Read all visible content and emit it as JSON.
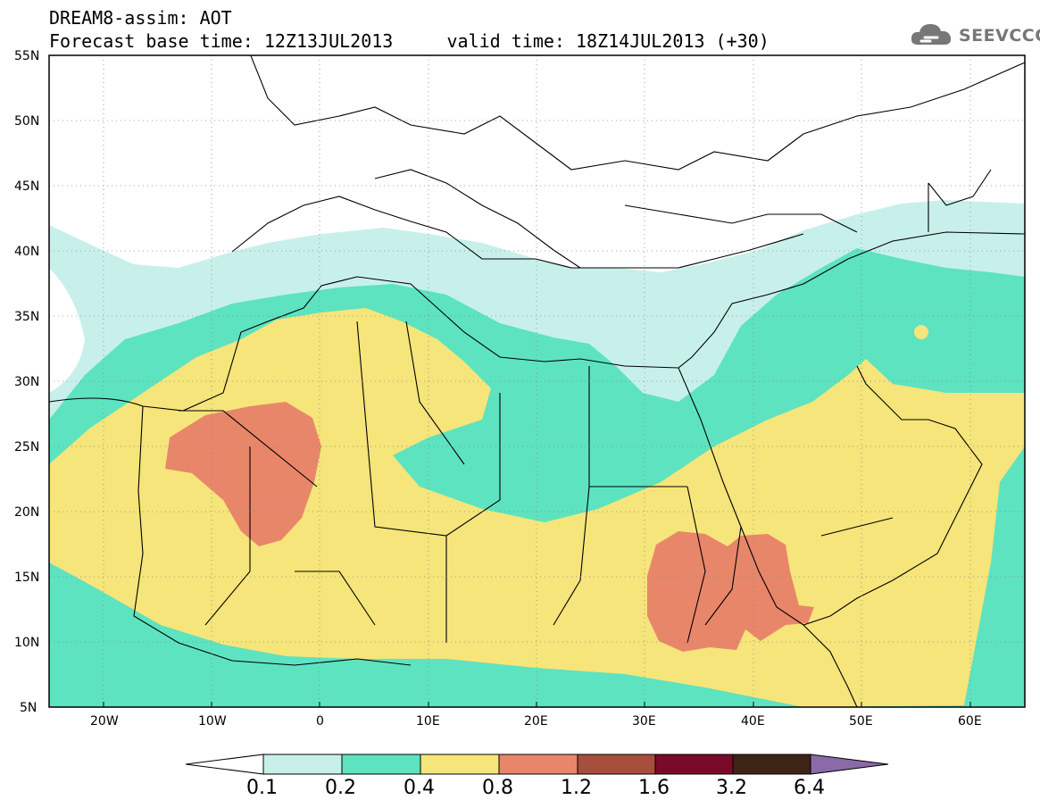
{
  "header": {
    "title_line1": "DREAM8-assim: AOT",
    "title_line2": "Forecast base time: 12Z13JUL2013     valid time: 18Z14JUL2013 (+30)"
  },
  "logo": {
    "text": "SEEVCCC",
    "icon": "cloud-icon"
  },
  "map": {
    "variable": "AOT",
    "extent": {
      "lon_min": -25,
      "lon_max": 65,
      "lat_min": 5,
      "lat_max": 55
    },
    "lat_labels": [
      "55N",
      "50N",
      "45N",
      "40N",
      "35N",
      "30N",
      "25N",
      "20N",
      "15N",
      "10N",
      "5N"
    ],
    "lon_labels": [
      "20W",
      "10W",
      "0",
      "10E",
      "20E",
      "30E",
      "40E",
      "50E",
      "60E"
    ],
    "colors": {
      "c01": "#c8f0ea",
      "c02": "#5de3c0",
      "c04": "#f5e57a",
      "c08": "#e8866a",
      "c12": "#a84e3c",
      "c16": "#7a0a2a",
      "c32": "#3e2416",
      "c64": "#8a6aa8"
    }
  },
  "colorbar": {
    "labels": [
      "0.1",
      "0.2",
      "0.4",
      "0.8",
      "1.2",
      "1.6",
      "3.2",
      "6.4"
    ]
  }
}
